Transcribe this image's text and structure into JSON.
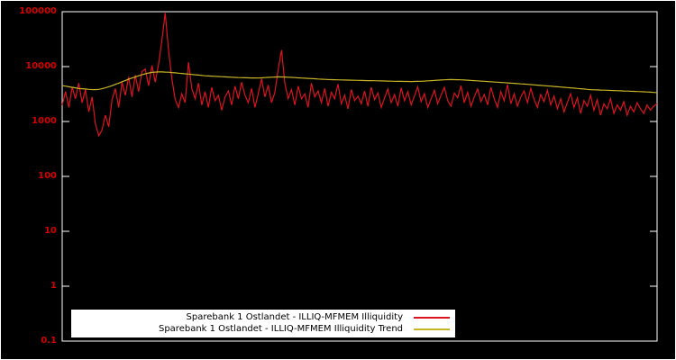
{
  "chart_data": {
    "type": "line",
    "title": "",
    "xlabel": "",
    "ylabel": "",
    "yscale": "log",
    "ylim": [
      0.1,
      100000
    ],
    "grid": false,
    "background_color": "#000000",
    "axis_color": "#ffffff",
    "tick_label_color": "#d40000",
    "yticks": [
      "100000",
      "10000",
      "1000",
      "100",
      "10",
      "1",
      "0.1"
    ],
    "legend": {
      "position": "bottom-center",
      "background": "#ffffff"
    },
    "series": [
      {
        "name": "Sparebank 1 Ostlandet - ILLIQ-MFMEM Illiquidity",
        "color": "#dc1420",
        "values": [
          2000,
          3500,
          1800,
          4200,
          2600,
          5000,
          2200,
          3800,
          1500,
          2800,
          900,
          550,
          700,
          1300,
          800,
          2500,
          4000,
          1800,
          5200,
          3000,
          6500,
          2800,
          7000,
          3500,
          8200,
          9000,
          4500,
          10500,
          5200,
          11000,
          30000,
          95000,
          20000,
          6000,
          2500,
          1800,
          3200,
          2200,
          12000,
          4000,
          2600,
          5000,
          2000,
          3500,
          1800,
          4200,
          2400,
          3000,
          1600,
          2800,
          3600,
          2000,
          4400,
          2600,
          5200,
          3000,
          2200,
          4000,
          1800,
          3200,
          6000,
          2800,
          4600,
          2200,
          3400,
          9000,
          20000,
          5000,
          2600,
          3800,
          2000,
          4400,
          2600,
          3200,
          1800,
          5000,
          2800,
          3600,
          2200,
          4000,
          1900,
          3400,
          2600,
          4800,
          2100,
          3000,
          1700,
          3800,
          2400,
          2900,
          2100,
          3600,
          1900,
          4200,
          2500,
          3300,
          1800,
          2700,
          3900,
          2200,
          3100,
          1900,
          4100,
          2400,
          3500,
          2000,
          2900,
          4300,
          2300,
          3200,
          1800,
          2600,
          3700,
          2100,
          3000,
          4200,
          2400,
          1900,
          3300,
          2700,
          4500,
          2200,
          3400,
          1900,
          2800,
          3900,
          2300,
          3100,
          2000,
          4200,
          2600,
          1800,
          3500,
          2400,
          4700,
          2100,
          3200,
          1900,
          2800,
          3600,
          2200,
          4000,
          2500,
          1800,
          3100,
          2300,
          3700,
          2000,
          2900,
          1700,
          2600,
          1500,
          2200,
          3200,
          1800,
          2700,
          1400,
          2400,
          1900,
          3000,
          1600,
          2500,
          1300,
          2100,
          1700,
          2600,
          1400,
          2000,
          1600,
          2300,
          1300,
          1900,
          1500,
          2200,
          1700,
          1400,
          2000,
          1600,
          1900,
          2100
        ]
      },
      {
        "name": "Sparebank 1 Ostlandet - ILLIQ-MFMEM Illiquidity Trend",
        "color": "#c8b428",
        "values": [
          4500,
          4400,
          4300,
          4200,
          4100,
          4000,
          3950,
          3900,
          3850,
          3820,
          3800,
          3850,
          3950,
          4100,
          4300,
          4500,
          4750,
          5000,
          5300,
          5600,
          5900,
          6200,
          6500,
          6800,
          7100,
          7400,
          7650,
          7850,
          7950,
          8000,
          8000,
          7950,
          7900,
          7800,
          7700,
          7600,
          7500,
          7400,
          7300,
          7200,
          7100,
          7000,
          6900,
          6800,
          6750,
          6700,
          6650,
          6600,
          6550,
          6500,
          6450,
          6400,
          6350,
          6300,
          6280,
          6260,
          6240,
          6220,
          6210,
          6200,
          6250,
          6300,
          6350,
          6400,
          6450,
          6500,
          6480,
          6450,
          6400,
          6350,
          6300,
          6250,
          6200,
          6150,
          6100,
          6050,
          6000,
          5950,
          5900,
          5850,
          5800,
          5780,
          5760,
          5740,
          5720,
          5700,
          5680,
          5660,
          5640,
          5620,
          5600,
          5580,
          5560,
          5540,
          5520,
          5500,
          5480,
          5460,
          5440,
          5420,
          5400,
          5390,
          5380,
          5370,
          5360,
          5350,
          5360,
          5380,
          5400,
          5450,
          5500,
          5550,
          5600,
          5650,
          5700,
          5750,
          5780,
          5800,
          5790,
          5770,
          5750,
          5700,
          5650,
          5600,
          5550,
          5500,
          5450,
          5400,
          5350,
          5300,
          5250,
          5200,
          5150,
          5100,
          5050,
          5000,
          4950,
          4900,
          4850,
          4800,
          4750,
          4700,
          4650,
          4600,
          4550,
          4500,
          4450,
          4400,
          4350,
          4300,
          4250,
          4200,
          4150,
          4100,
          4050,
          4000,
          3950,
          3900,
          3850,
          3800,
          3780,
          3760,
          3740,
          3720,
          3700,
          3680,
          3660,
          3640,
          3620,
          3600,
          3580,
          3560,
          3540,
          3520,
          3500,
          3480,
          3450,
          3420,
          3390,
          3360
        ]
      }
    ]
  }
}
